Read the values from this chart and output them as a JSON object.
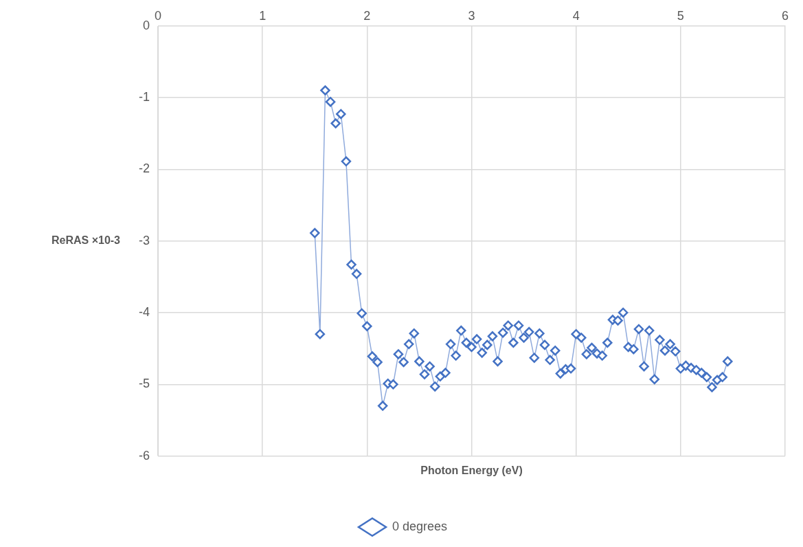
{
  "chart_data": {
    "type": "line",
    "xlabel": "Photon Energy (eV)",
    "ylabel": "ReRAS ×10-3",
    "xlim": [
      0,
      6
    ],
    "xticks": [
      0,
      1,
      2,
      3,
      4,
      5,
      6
    ],
    "ylim": [
      -6,
      0
    ],
    "yticks": [
      -6,
      -5,
      -4,
      -3,
      -2,
      -1,
      0
    ],
    "grid": true,
    "legend": "bottom",
    "marker": "diamond",
    "line_style": "solid",
    "x": [
      1.5,
      1.55,
      1.6,
      1.65,
      1.7,
      1.75,
      1.8,
      1.85,
      1.9,
      1.95,
      2.0,
      2.05,
      2.1,
      2.15,
      2.2,
      2.25,
      2.3,
      2.35,
      2.4,
      2.45,
      2.5,
      2.55,
      2.6,
      2.65,
      2.7,
      2.75,
      2.8,
      2.85,
      2.9,
      2.95,
      3.0,
      3.05,
      3.1,
      3.15,
      3.2,
      3.25,
      3.3,
      3.35,
      3.4,
      3.45,
      3.5,
      3.55,
      3.6,
      3.65,
      3.7,
      3.75,
      3.8,
      3.85,
      3.9,
      3.95,
      4.0,
      4.05,
      4.1,
      4.15,
      4.2,
      4.25,
      4.3,
      4.35,
      4.4,
      4.45,
      4.5,
      4.55,
      4.6,
      4.65,
      4.7,
      4.75,
      4.8,
      4.85,
      4.9,
      4.95,
      5.0,
      5.05,
      5.1,
      5.15,
      5.2,
      5.25,
      5.3,
      5.35,
      5.4,
      5.45
    ],
    "series": [
      {
        "name": "0 degrees",
        "color": "#4472c4",
        "values": [
          -2.89,
          -4.3,
          -0.9,
          -1.06,
          -1.36,
          -1.23,
          -1.89,
          -3.33,
          -3.46,
          -4.01,
          -4.19,
          -4.61,
          -4.69,
          -5.3,
          -4.99,
          -5.0,
          -4.58,
          -4.69,
          -4.44,
          -4.29,
          -4.68,
          -4.86,
          -4.75,
          -5.03,
          -4.89,
          -4.84,
          -4.44,
          -4.6,
          -4.25,
          -4.42,
          -4.48,
          -4.37,
          -4.56,
          -4.45,
          -4.33,
          -4.68,
          -4.28,
          -4.18,
          -4.42,
          -4.18,
          -4.35,
          -4.27,
          -4.63,
          -4.29,
          -4.45,
          -4.66,
          -4.53,
          -4.85,
          -4.79,
          -4.78,
          -4.3,
          -4.35,
          -4.58,
          -4.49,
          -4.57,
          -4.6,
          -4.42,
          -4.1,
          -4.11,
          -4.0,
          -4.48,
          -4.51,
          -4.23,
          -4.75,
          -4.25,
          -4.93,
          -4.38,
          -4.53,
          -4.44,
          -4.54,
          -4.78,
          -4.74,
          -4.77,
          -4.8,
          -4.84,
          -4.9,
          -5.04,
          -4.94,
          -4.9,
          -4.68
        ]
      }
    ]
  }
}
